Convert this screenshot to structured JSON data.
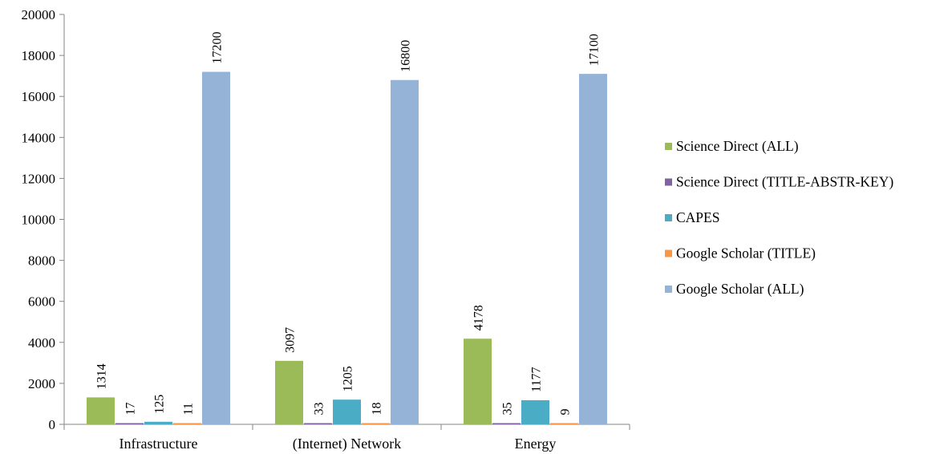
{
  "chart_data": {
    "type": "bar",
    "title": "",
    "xlabel": "",
    "ylabel": "",
    "categories": [
      "Infrastructure",
      "(Internet) Network",
      "Energy"
    ],
    "ylim": [
      0,
      20000
    ],
    "yticks": [
      0,
      2000,
      4000,
      6000,
      8000,
      10000,
      12000,
      14000,
      16000,
      18000,
      20000
    ],
    "grid": false,
    "legend_position": "right",
    "series": [
      {
        "name": "Science Direct (ALL)",
        "color": "#9BBB59",
        "values": [
          1314,
          3097,
          4178
        ]
      },
      {
        "name": "Science Direct (TITLE-ABSTR-KEY)",
        "color": "#8064A2",
        "values": [
          17,
          33,
          35
        ]
      },
      {
        "name": "CAPES",
        "color": "#4BACC6",
        "values": [
          125,
          1205,
          1177
        ]
      },
      {
        "name": "Google Scholar (TITLE)",
        "color": "#F79646",
        "values": [
          11,
          18,
          9
        ]
      },
      {
        "name": "Google Scholar (ALL)",
        "color": "#95B3D7",
        "values": [
          17200,
          16800,
          17100
        ]
      }
    ]
  }
}
